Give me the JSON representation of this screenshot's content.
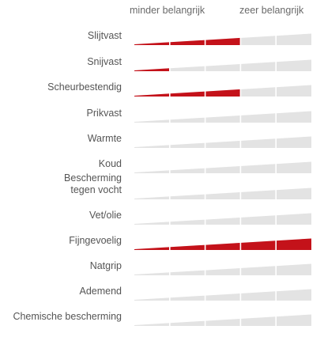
{
  "scale": {
    "min_label": "minder belangrijk",
    "max_label": "zeer belangrijk"
  },
  "colors": {
    "accent": "#c4121a",
    "track": "#e3e3e3",
    "label": "#555555"
  },
  "properties": [
    {
      "key": "slijtvast",
      "label": "Slijtvast",
      "level": 3
    },
    {
      "key": "snijvast",
      "label": "Snijvast",
      "level": 1
    },
    {
      "key": "scheurbestendig",
      "label": "Scheurbestendig",
      "level": 3
    },
    {
      "key": "prikvast",
      "label": "Prikvast",
      "level": 0
    },
    {
      "key": "warmte",
      "label": "Warmte",
      "level": 0
    },
    {
      "key": "koud",
      "label": "Koud",
      "level": 0
    },
    {
      "key": "bescherming-tegen-vocht",
      "label": "Bescherming\ntegen vocht",
      "level": 0
    },
    {
      "key": "vet-olie",
      "label": "Vet/olie",
      "level": 0
    },
    {
      "key": "fijngevoelig",
      "label": "Fijngevoelig",
      "level": 5
    },
    {
      "key": "natgrip",
      "label": "Natgrip",
      "level": 0
    },
    {
      "key": "ademend",
      "label": "Ademend",
      "level": 0
    },
    {
      "key": "chemische-bescherming",
      "label": "Chemische bescherming",
      "level": 0
    }
  ],
  "max_level": 5
}
